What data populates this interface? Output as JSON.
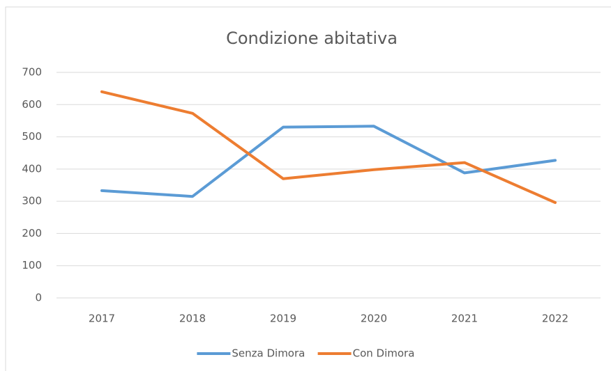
{
  "chart_data": {
    "type": "line",
    "title": "Condizione abitativa",
    "categories": [
      "2017",
      "2018",
      "2019",
      "2020",
      "2021",
      "2022"
    ],
    "series": [
      {
        "name": "Senza Dimora",
        "color": "#5b9bd5",
        "values": [
          333,
          315,
          530,
          533,
          388,
          427
        ]
      },
      {
        "name": "Con Dimora",
        "color": "#ed7d31",
        "values": [
          640,
          573,
          370,
          398,
          420,
          296
        ]
      }
    ],
    "ylim": [
      0,
      700
    ],
    "yticks": [
      0,
      100,
      200,
      300,
      400,
      500,
      600,
      700
    ],
    "grid": true,
    "legend": "bottom"
  }
}
